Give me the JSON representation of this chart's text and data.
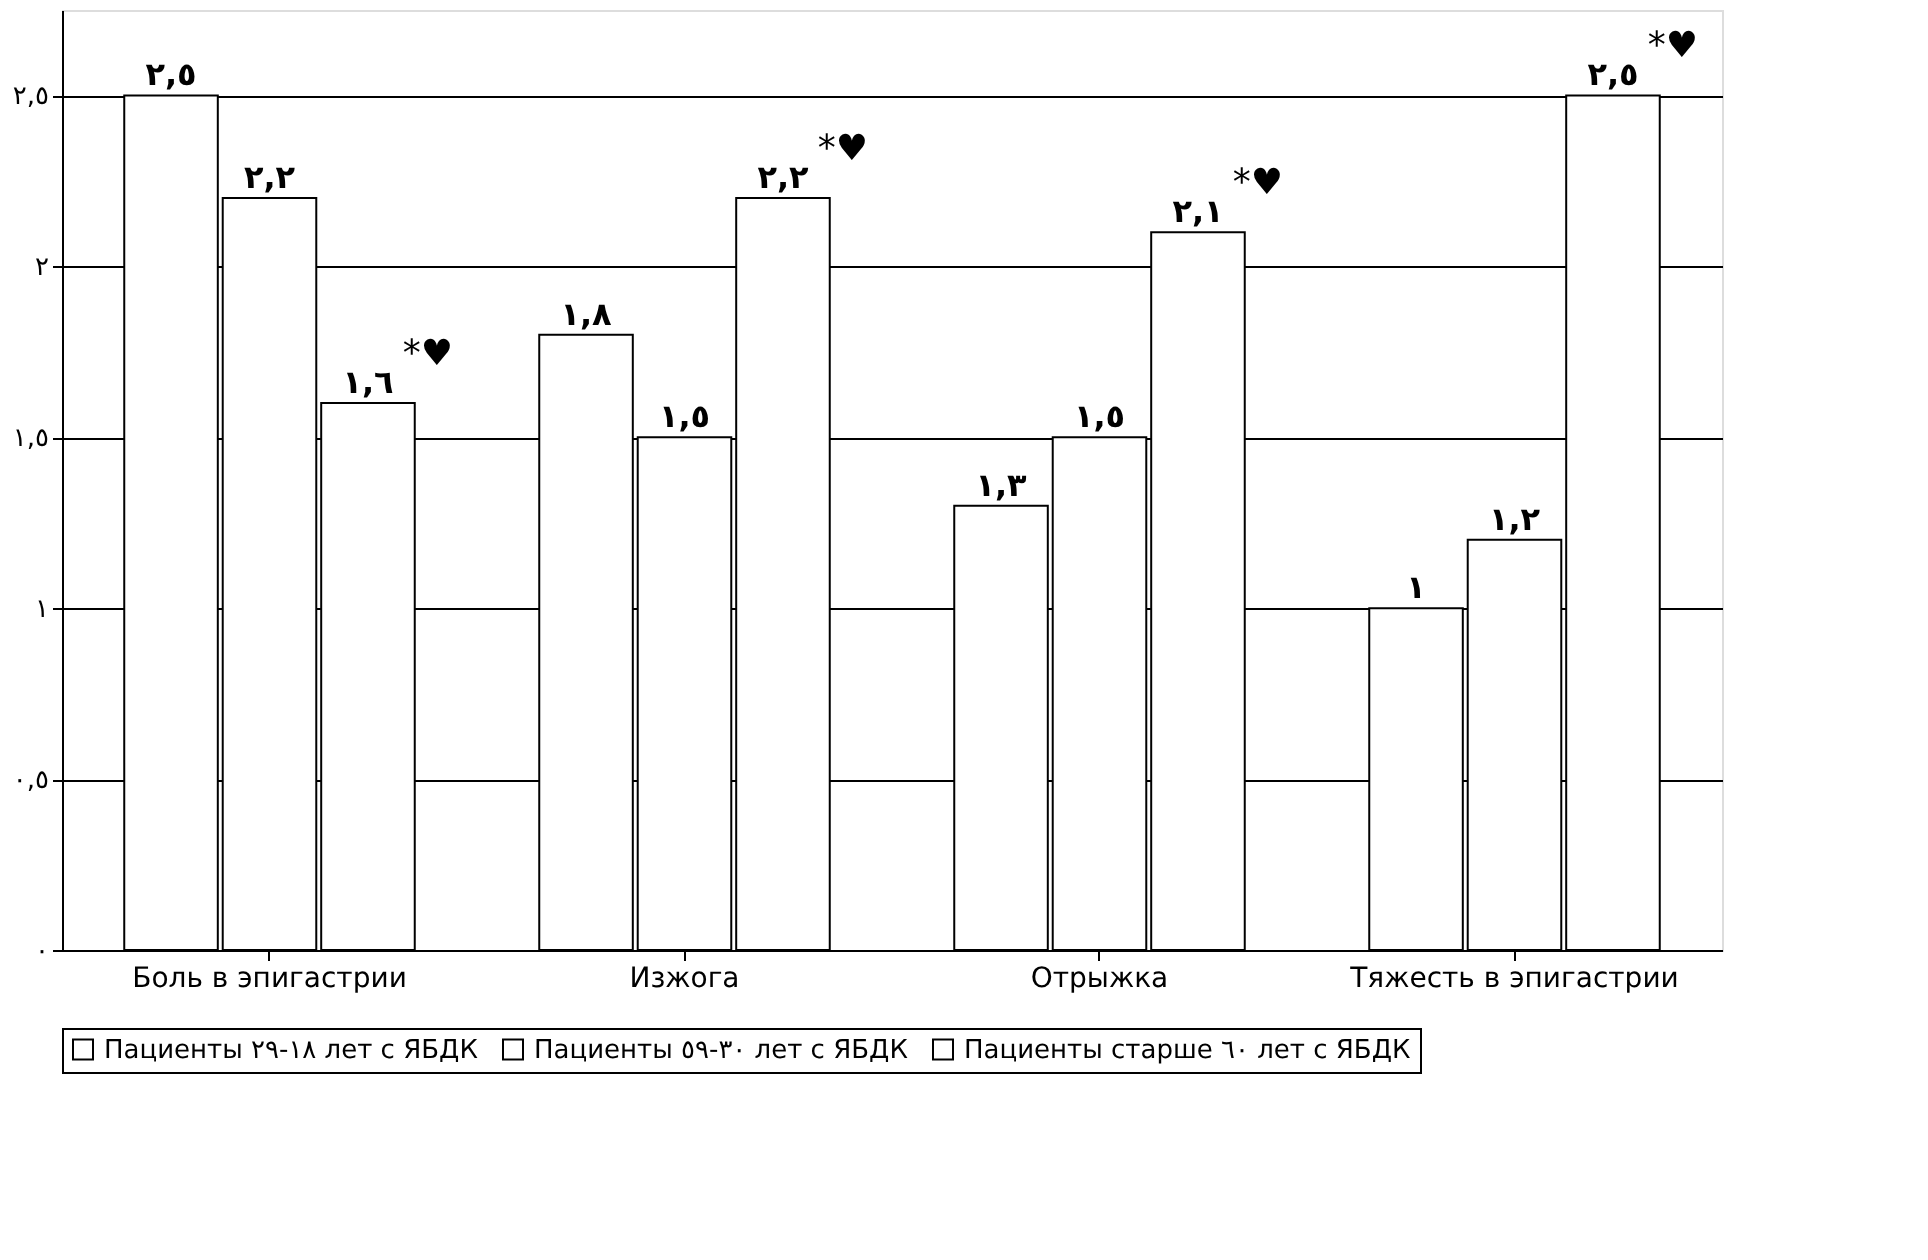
{
  "chart_data": {
    "type": "bar",
    "categories": [
      "Боль в эпигастрии",
      "Изжога",
      "Отрыжка",
      "Тяжесть в эпигастрии"
    ],
    "series": [
      {
        "name": "Пациенты ١٨-٢٩ лет с ЯБДК",
        "color": "#ffffff",
        "values": [
          2.5,
          1.8,
          1.3,
          1.0
        ],
        "value_labels": [
          "٢,٥",
          "١,٨",
          "١,٣",
          "١"
        ]
      },
      {
        "name": "Пациенты ٣٠-٥٩ лет с ЯБДК",
        "color": "#ffffff",
        "values": [
          2.2,
          1.5,
          1.5,
          1.2
        ],
        "value_labels": [
          "٢,٢",
          "١,٥",
          "١,٥",
          "١,٢"
        ]
      },
      {
        "name": "Пациенты старше ٦٠ лет с ЯБДК",
        "color": "#ffffff",
        "values": [
          1.6,
          2.2,
          2.1,
          2.5
        ],
        "value_labels": [
          "١,٦",
          "٢,٢",
          "٢,١",
          "٢,٥"
        ]
      }
    ],
    "ylim": [
      0,
      2.75
    ],
    "yticks": [
      {
        "value": 0,
        "label": "٠"
      },
      {
        "value": 0.5,
        "label": "٠,٥"
      },
      {
        "value": 1,
        "label": "١"
      },
      {
        "value": 1.5,
        "label": "١,٥"
      },
      {
        "value": 2,
        "label": "٢"
      },
      {
        "value": 2.5,
        "label": "٢,٥"
      }
    ],
    "annotations": [
      "*♥",
      "*♥",
      "*♥",
      "*♥"
    ],
    "grid": "y",
    "legend": "bottom"
  }
}
